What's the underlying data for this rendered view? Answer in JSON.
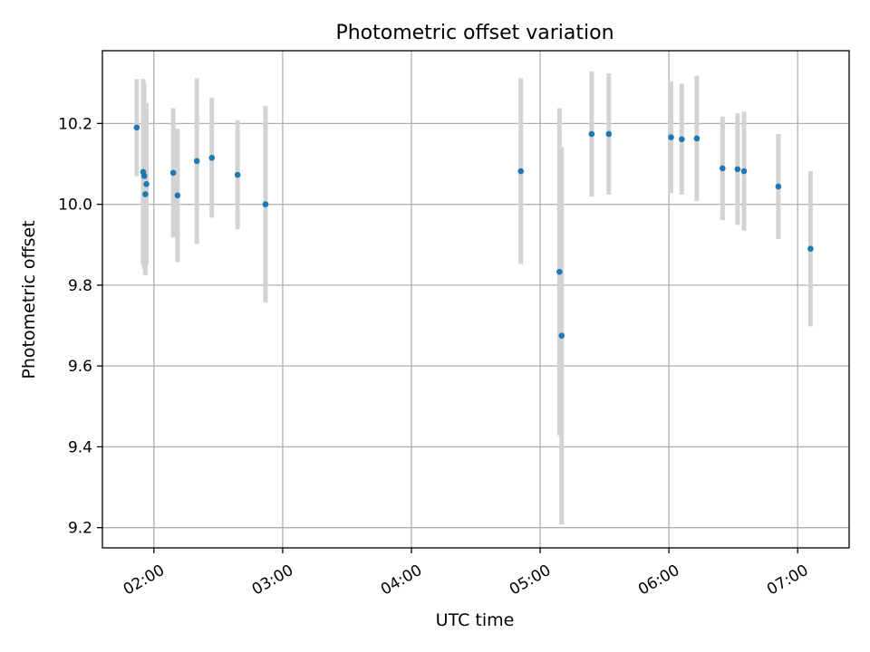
{
  "chart_data": {
    "type": "scatter",
    "title": "Photometric offset variation",
    "xlabel": "UTC time",
    "ylabel": "Photometric offset",
    "x_axis": {
      "scale": "time",
      "range": [
        "01:36",
        "07:24"
      ],
      "ticks": [
        "02:00",
        "03:00",
        "04:00",
        "05:00",
        "06:00",
        "07:00"
      ]
    },
    "y_axis": {
      "range": [
        9.15,
        10.38
      ],
      "ticks": [
        "9.2",
        "9.4",
        "9.6",
        "9.8",
        "10.0",
        "10.2"
      ]
    },
    "grid": true,
    "marker_color": "#1f77b4",
    "errorbar_color": "#d3d3d3",
    "series": [
      {
        "points": [
          {
            "x": "01:52",
            "y": 10.19,
            "err": 0.12
          },
          {
            "x": "01:55",
            "y": 10.08,
            "err": 0.23
          },
          {
            "x": "01:55.5",
            "y": 10.07,
            "err": 0.23
          },
          {
            "x": "01:56",
            "y": 10.025,
            "err": 0.2
          },
          {
            "x": "01:56.5",
            "y": 10.05,
            "err": 0.2
          },
          {
            "x": "02:09",
            "y": 10.078,
            "err": 0.16
          },
          {
            "x": "02:11",
            "y": 10.022,
            "err": 0.165
          },
          {
            "x": "02:20",
            "y": 10.107,
            "err": 0.205
          },
          {
            "x": "02:27",
            "y": 10.115,
            "err": 0.148
          },
          {
            "x": "02:39",
            "y": 10.073,
            "err": 0.135
          },
          {
            "x": "02:52",
            "y": 10.0,
            "err": 0.243
          },
          {
            "x": "04:51",
            "y": 10.082,
            "err": 0.23
          },
          {
            "x": "05:09",
            "y": 9.833,
            "err": 0.405
          },
          {
            "x": "05:10",
            "y": 9.675,
            "err": 0.467
          },
          {
            "x": "05:24",
            "y": 10.174,
            "err": 0.155
          },
          {
            "x": "05:32",
            "y": 10.174,
            "err": 0.15
          },
          {
            "x": "06:01",
            "y": 10.166,
            "err": 0.138
          },
          {
            "x": "06:06",
            "y": 10.161,
            "err": 0.137
          },
          {
            "x": "06:13",
            "y": 10.163,
            "err": 0.155
          },
          {
            "x": "06:25",
            "y": 10.089,
            "err": 0.128
          },
          {
            "x": "06:32",
            "y": 10.087,
            "err": 0.138
          },
          {
            "x": "06:35",
            "y": 10.082,
            "err": 0.147
          },
          {
            "x": "06:51",
            "y": 10.044,
            "err": 0.13
          },
          {
            "x": "07:06",
            "y": 9.89,
            "err": 0.192
          }
        ]
      }
    ]
  }
}
